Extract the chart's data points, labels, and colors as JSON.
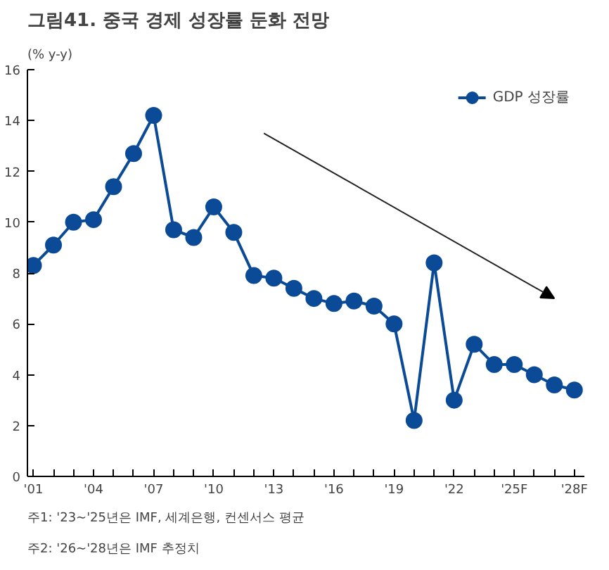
{
  "chart_data": {
    "type": "line",
    "title": "그림41. 중국 경제 성장률 둔화 전망",
    "ylabel": "(% y-y)",
    "categories": [
      "'01",
      null,
      null,
      "'04",
      null,
      null,
      "'07",
      null,
      null,
      "'10",
      null,
      null,
      "'13",
      null,
      null,
      "'16",
      null,
      null,
      "'19",
      null,
      null,
      "'22",
      null,
      null,
      "'25F",
      null,
      null,
      "'28F"
    ],
    "series": [
      {
        "name": "GDP 성장률",
        "color": "#0b4a96",
        "values": [
          8.3,
          9.1,
          10.0,
          10.1,
          11.4,
          12.7,
          14.2,
          9.7,
          9.4,
          10.6,
          9.6,
          7.9,
          7.8,
          7.4,
          7.0,
          6.8,
          6.9,
          6.7,
          6.0,
          2.2,
          8.4,
          3.0,
          5.2,
          4.4,
          4.4,
          4.0,
          3.6,
          3.4
        ]
      }
    ],
    "ylim": [
      0,
      16
    ],
    "yticks": [
      0,
      2,
      4,
      6,
      8,
      10,
      12,
      14,
      16
    ],
    "grid": false,
    "legend": "top right",
    "marker": "circle",
    "line_style": "solid",
    "annotations": [
      "주1: '23~'25년은 IMF, 세계은행, 컨센서스 평균",
      "주2: '26~'28년은 IMF 추정치"
    ]
  }
}
